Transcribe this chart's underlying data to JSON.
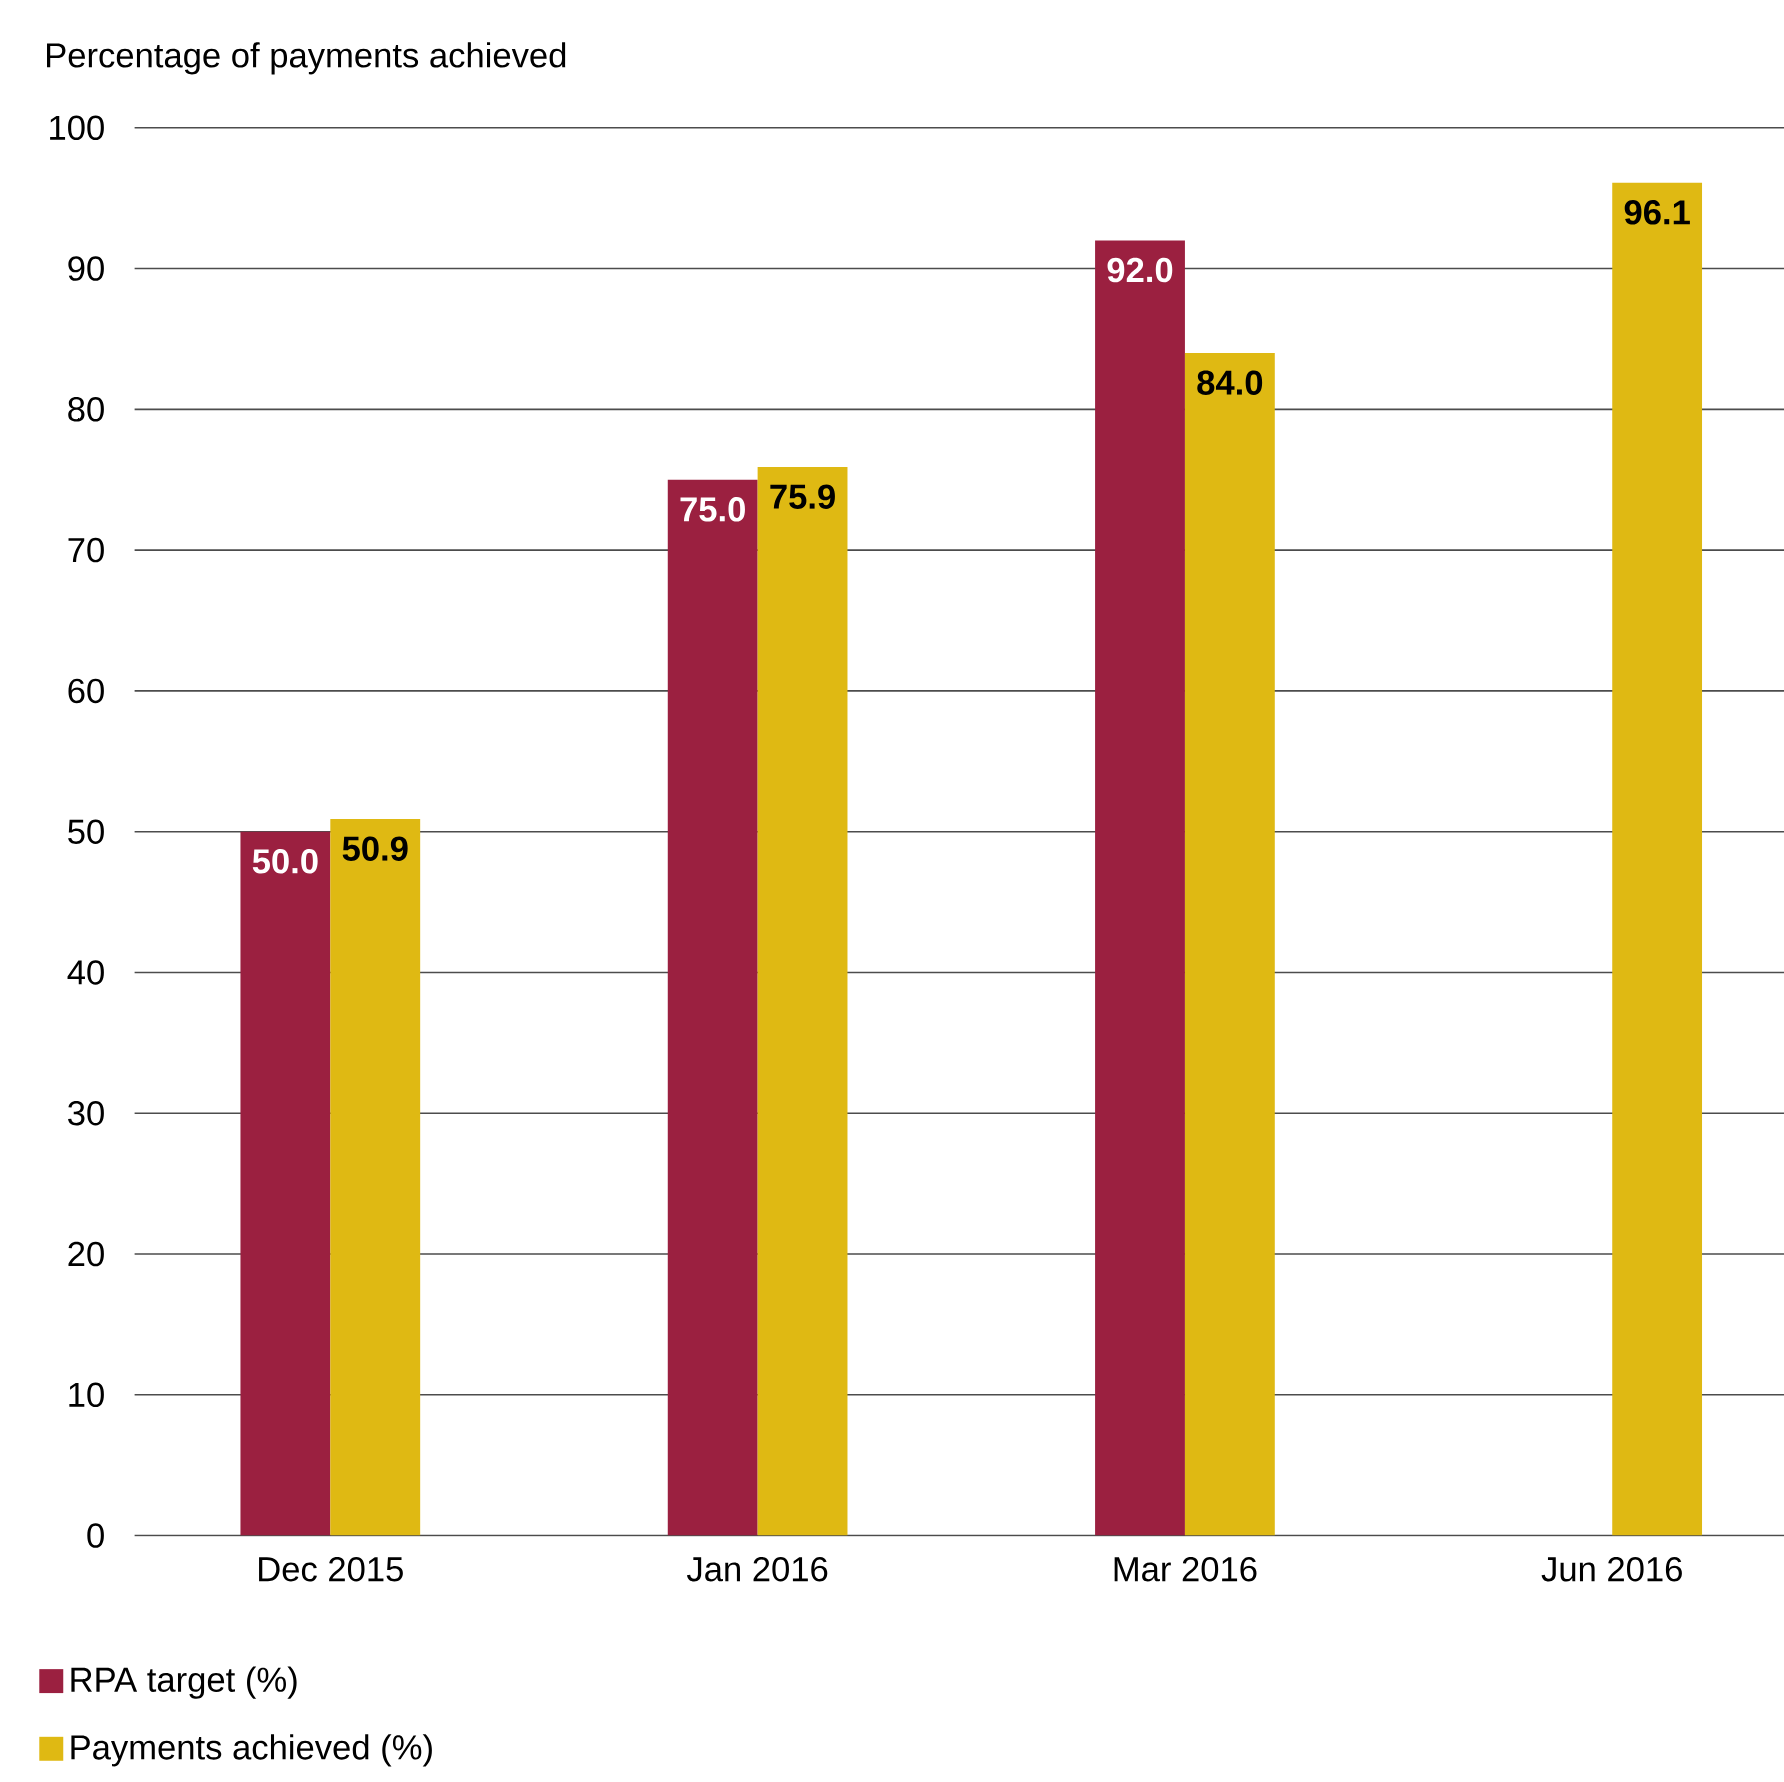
{
  "chart_data": {
    "type": "bar",
    "ylabel": "Percentage of payments achieved",
    "categories": [
      "Dec 2015",
      "Jan 2016",
      "Mar 2016",
      "Jun 2016"
    ],
    "series": [
      {
        "name": "RPA target (%)",
        "color": "#9b2040",
        "values": [
          50.0,
          75.0,
          92.0,
          null
        ],
        "value_labels": [
          "50.0",
          "75.0",
          "92.0",
          null
        ]
      },
      {
        "name": "Payments achieved (%)",
        "color": "#dfb913",
        "values": [
          50.9,
          75.9,
          84.0,
          96.1
        ],
        "value_labels": [
          "50.9",
          "75.9",
          "84.0",
          "96.1"
        ]
      }
    ],
    "ylim": [
      0,
      100
    ],
    "yticks": [
      0,
      10,
      20,
      30,
      40,
      50,
      60,
      70,
      80,
      90,
      100
    ],
    "grid": "y",
    "legend": "bottom left"
  }
}
